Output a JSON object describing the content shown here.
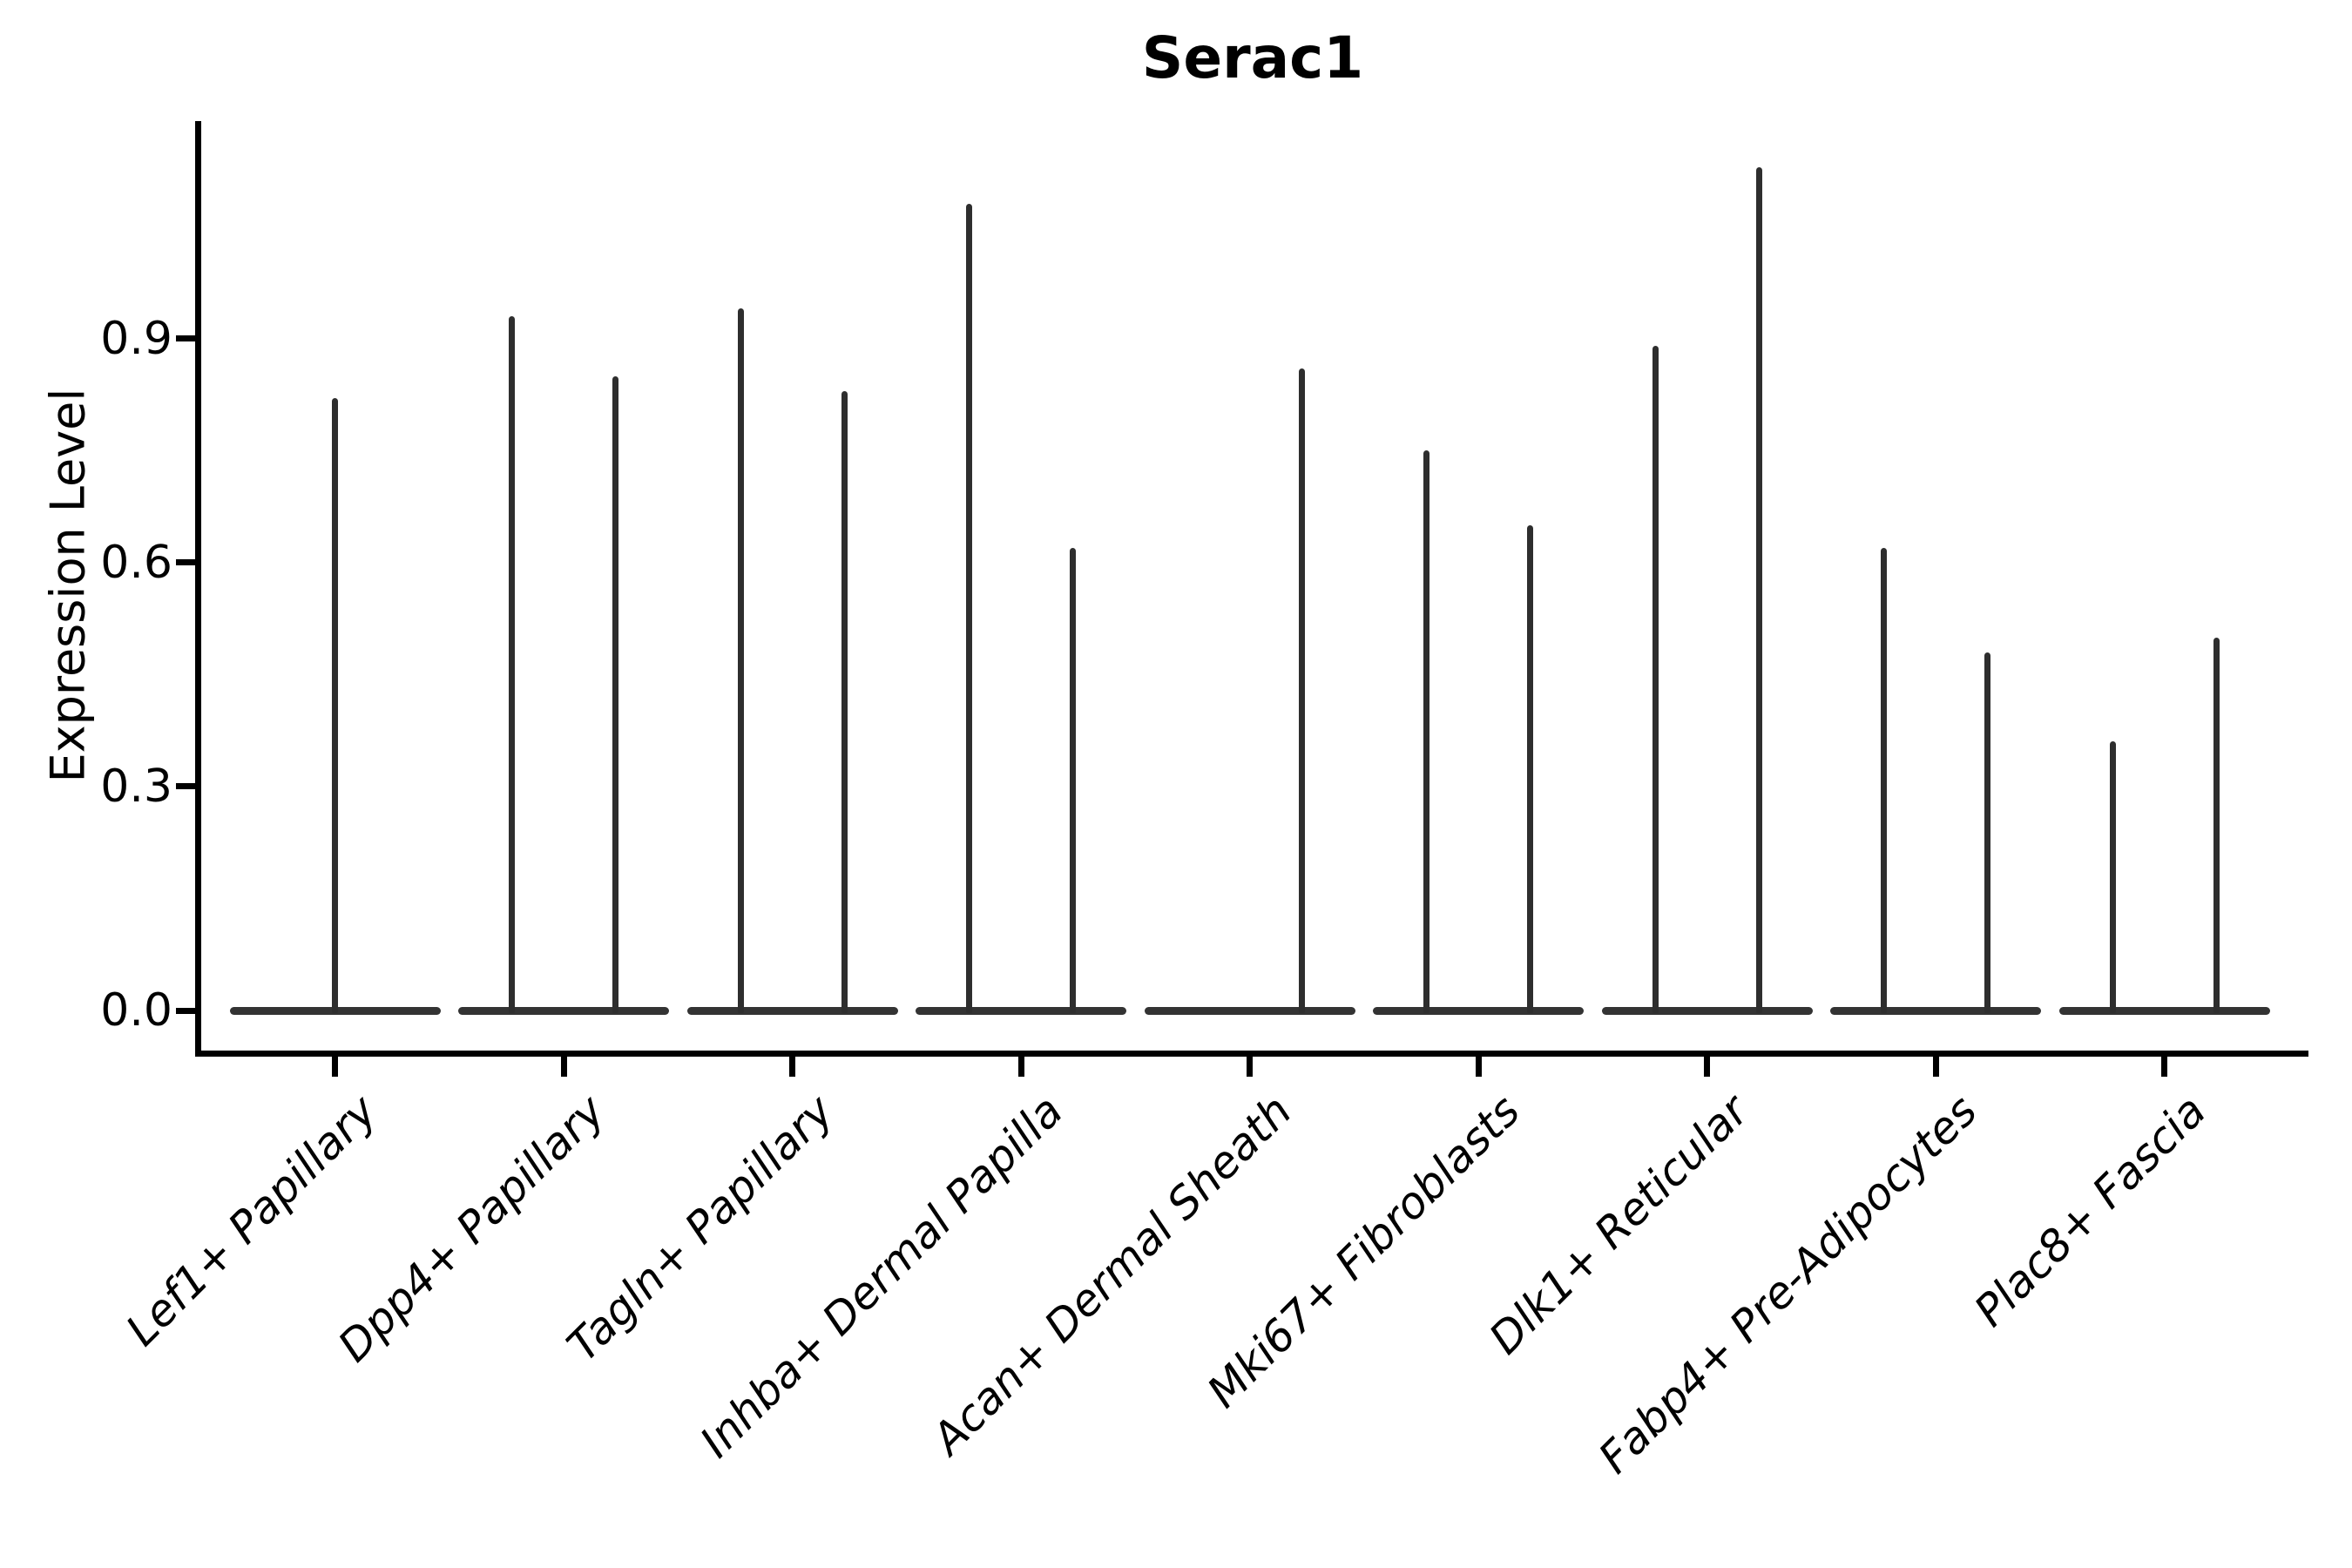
{
  "title": "Serac1",
  "y_axis": {
    "label": "Expression Level",
    "tick_labels": [
      "0.0",
      "0.3",
      "0.6",
      "0.9"
    ]
  },
  "colors": {
    "background": "#ffffff",
    "axis": "#000000",
    "violin": "#2e2e2e",
    "text": "#000000"
  },
  "chart_data": {
    "type": "violin",
    "title": "Serac1",
    "xlabel": "",
    "ylabel": "Expression Level",
    "ylim": [
      -0.06,
      1.19
    ],
    "yticks": [
      0.0,
      0.3,
      0.6,
      0.9
    ],
    "grid": false,
    "legend": "none",
    "categories": [
      "Lef1+ Papillary",
      "Dpp4+ Papillary",
      "Tagln+ Papillary",
      "Inhba+ Dermal Papilla",
      "Acan+ Dermal Sheath",
      "Mki67+ Fibroblasts",
      "Dlk1+ Reticular",
      "Fabp4+ Pre-Adipocytes",
      "Plac8+ Fascia"
    ],
    "violins": [
      {
        "category": "Lef1+ Papillary",
        "spikes": [
          {
            "position": "center",
            "max_expression": 0.82
          }
        ]
      },
      {
        "category": "Dpp4+ Papillary",
        "spikes": [
          {
            "position": "left",
            "max_expression": 0.93
          },
          {
            "position": "right",
            "max_expression": 0.85
          }
        ]
      },
      {
        "category": "Tagln+ Papillary",
        "spikes": [
          {
            "position": "left",
            "max_expression": 0.94
          },
          {
            "position": "right",
            "max_expression": 0.83
          }
        ]
      },
      {
        "category": "Inhba+ Dermal Papilla",
        "spikes": [
          {
            "position": "left",
            "max_expression": 1.08
          },
          {
            "position": "right",
            "max_expression": 0.62
          }
        ]
      },
      {
        "category": "Acan+ Dermal Sheath",
        "spikes": [
          {
            "position": "right",
            "max_expression": 0.86
          }
        ]
      },
      {
        "category": "Mki67+ Fibroblasts",
        "spikes": [
          {
            "position": "left",
            "max_expression": 0.75
          },
          {
            "position": "right",
            "max_expression": 0.65
          }
        ]
      },
      {
        "category": "Dlk1+ Reticular",
        "spikes": [
          {
            "position": "left",
            "max_expression": 0.89
          },
          {
            "position": "right",
            "max_expression": 1.13
          }
        ]
      },
      {
        "category": "Fabp4+ Pre-Adipocytes",
        "spikes": [
          {
            "position": "left",
            "max_expression": 0.62
          },
          {
            "position": "right",
            "max_expression": 0.48
          }
        ]
      },
      {
        "category": "Plac8+ Fascia",
        "spikes": [
          {
            "position": "left",
            "max_expression": 0.36
          },
          {
            "position": "right",
            "max_expression": 0.5
          }
        ]
      }
    ]
  }
}
